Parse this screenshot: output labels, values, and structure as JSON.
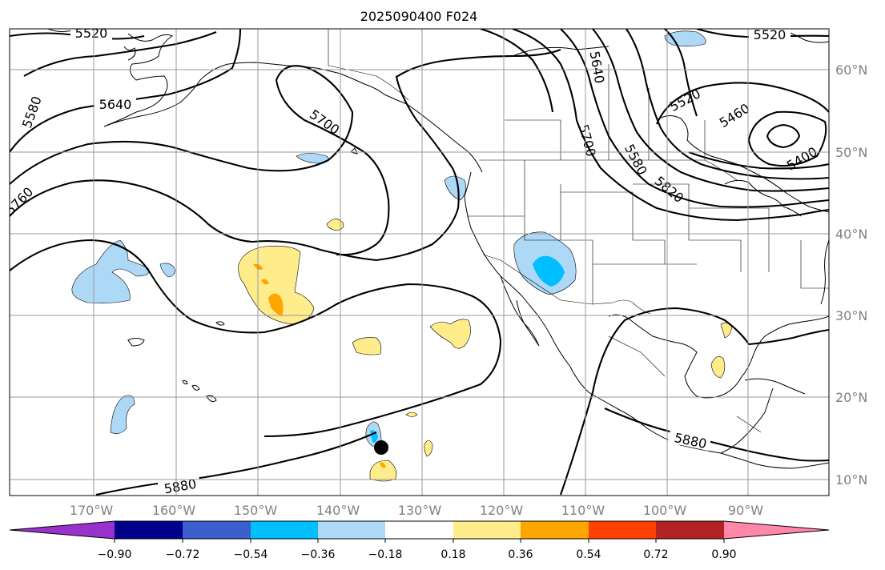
{
  "title": "2025090400 F024",
  "lon_labels": [
    "170°W",
    "160°W",
    "150°W",
    "140°W",
    "130°W",
    "120°W",
    "110°W",
    "100°W",
    "90°W"
  ],
  "lat_labels": [
    "60°N",
    "50°N",
    "40°N",
    "30°N",
    "20°N",
    "10°N"
  ],
  "contour_labels": [
    "5520",
    "5520",
    "5640",
    "5640",
    "5580",
    "5700",
    "5700",
    "5760",
    "5580",
    "5520",
    "5460",
    "5400",
    "5820",
    "5880",
    "5880"
  ],
  "colorbar": {
    "ticks": [
      "−0.90",
      "−0.72",
      "−0.54",
      "−0.36",
      "−0.18",
      "0.18",
      "0.36",
      "0.54",
      "0.72",
      "0.90"
    ],
    "colors": [
      "#9932cc",
      "#00008b",
      "#3a5fcd",
      "#00bfff",
      "#add8f6",
      "#ffffff",
      "#ffec8b",
      "#ffa500",
      "#ff4000",
      "#b22222",
      "#ff88aa"
    ]
  },
  "marker": {
    "name": "black-dot",
    "color": "#000000"
  }
}
